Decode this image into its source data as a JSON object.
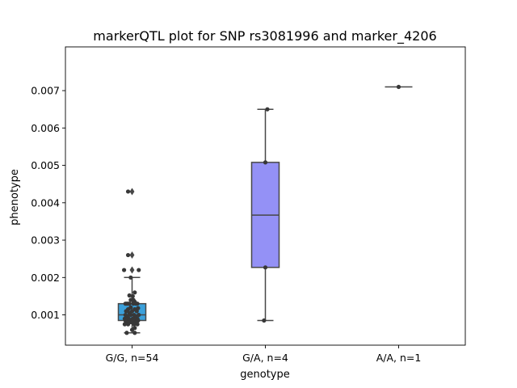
{
  "chart_data": {
    "type": "box",
    "title": "markerQTL plot for SNP rs3081996 and marker_4206",
    "xlabel": "genotype",
    "ylabel": "phenotype",
    "ylim": [
      0.00019,
      0.00817
    ],
    "yticks": [
      0.001,
      0.002,
      0.003,
      0.004,
      0.005,
      0.006,
      0.007
    ],
    "ytick_labels": [
      "0.001",
      "0.002",
      "0.003",
      "0.004",
      "0.005",
      "0.006",
      "0.007"
    ],
    "grid": false,
    "categories": [
      "G/G, n=54",
      "G/A, n=4",
      "A/A, n=1"
    ],
    "boxes": [
      {
        "category": "G/G, n=54",
        "color": "#3aa0db",
        "q1": 0.00085,
        "median": 0.001,
        "q3": 0.0013,
        "whisker_low": 0.00052,
        "whisker_high": 0.002,
        "outliers": [
          0.0022,
          0.0026,
          0.0043
        ]
      },
      {
        "category": "G/A, n=4",
        "color": "#9491f6",
        "q1": 0.00227,
        "median": 0.00367,
        "q3": 0.00508,
        "whisker_low": 0.00085,
        "whisker_high": 0.0065,
        "outliers": []
      },
      {
        "category": "A/A, n=1",
        "color": "#9491f6",
        "q1": 0.0071,
        "median": 0.0071,
        "q3": 0.0071,
        "whisker_low": 0.0071,
        "whisker_high": 0.0071,
        "outliers": []
      }
    ],
    "points": [
      {
        "category": 0,
        "jitter": -0.03,
        "y": 0.0043
      },
      {
        "category": 0,
        "jitter": -0.03,
        "y": 0.0026
      },
      {
        "category": 0,
        "jitter": -0.06,
        "y": 0.0022
      },
      {
        "category": 0,
        "jitter": 0.05,
        "y": 0.0022
      },
      {
        "category": 0,
        "jitter": -0.01,
        "y": 0.002
      },
      {
        "category": 0,
        "jitter": 0.02,
        "y": 0.0016
      },
      {
        "category": 0,
        "jitter": -0.02,
        "y": 0.00152
      },
      {
        "category": 0,
        "jitter": 0.005,
        "y": 0.0015
      },
      {
        "category": 0,
        "jitter": -0.01,
        "y": 0.0014
      },
      {
        "category": 0,
        "jitter": 0.01,
        "y": 0.0014
      },
      {
        "category": 0,
        "jitter": 0.02,
        "y": 0.00135
      },
      {
        "category": 0,
        "jitter": -0.05,
        "y": 0.0013
      },
      {
        "category": 0,
        "jitter": -0.04,
        "y": 0.0013
      },
      {
        "category": 0,
        "jitter": -0.03,
        "y": 0.0013
      },
      {
        "category": 0,
        "jitter": -0.02,
        "y": 0.0013
      },
      {
        "category": 0,
        "jitter": 0.01,
        "y": 0.0013
      },
      {
        "category": 0,
        "jitter": 0.03,
        "y": 0.0013
      },
      {
        "category": 0,
        "jitter": 0.04,
        "y": 0.0013
      },
      {
        "category": 0,
        "jitter": -0.01,
        "y": 0.0012
      },
      {
        "category": 0,
        "jitter": -0.03,
        "y": 0.00115
      },
      {
        "category": 0,
        "jitter": 0.02,
        "y": 0.00115
      },
      {
        "category": 0,
        "jitter": 0.045,
        "y": 0.00118
      },
      {
        "category": 0,
        "jitter": -0.045,
        "y": 0.0011
      },
      {
        "category": 0,
        "jitter": 0.0,
        "y": 0.0011
      },
      {
        "category": 0,
        "jitter": 0.035,
        "y": 0.0011
      },
      {
        "category": 0,
        "jitter": -0.02,
        "y": 0.00105
      },
      {
        "category": 0,
        "jitter": -0.05,
        "y": 0.001
      },
      {
        "category": 0,
        "jitter": -0.01,
        "y": 0.001
      },
      {
        "category": 0,
        "jitter": 0.015,
        "y": 0.001
      },
      {
        "category": 0,
        "jitter": 0.05,
        "y": 0.001
      },
      {
        "category": 0,
        "jitter": -0.035,
        "y": 0.00095
      },
      {
        "category": 0,
        "jitter": 0.025,
        "y": 0.00095
      },
      {
        "category": 0,
        "jitter": -0.055,
        "y": 0.0009
      },
      {
        "category": 0,
        "jitter": -0.025,
        "y": 0.0009
      },
      {
        "category": 0,
        "jitter": 0.005,
        "y": 0.0009
      },
      {
        "category": 0,
        "jitter": 0.04,
        "y": 0.0009
      },
      {
        "category": 0,
        "jitter": -0.04,
        "y": 0.00088
      },
      {
        "category": 0,
        "jitter": 0.02,
        "y": 0.00088
      },
      {
        "category": 0,
        "jitter": -0.05,
        "y": 0.00085
      },
      {
        "category": 0,
        "jitter": -0.015,
        "y": 0.00085
      },
      {
        "category": 0,
        "jitter": 0.01,
        "y": 0.00085
      },
      {
        "category": 0,
        "jitter": 0.045,
        "y": 0.00085
      },
      {
        "category": 0,
        "jitter": -0.045,
        "y": 0.0008
      },
      {
        "category": 0,
        "jitter": -0.02,
        "y": 0.0008
      },
      {
        "category": 0,
        "jitter": 0.0,
        "y": 0.0008
      },
      {
        "category": 0,
        "jitter": 0.03,
        "y": 0.0008
      },
      {
        "category": 0,
        "jitter": -0.055,
        "y": 0.00075
      },
      {
        "category": 0,
        "jitter": -0.03,
        "y": 0.00075
      },
      {
        "category": 0,
        "jitter": 0.015,
        "y": 0.00075
      },
      {
        "category": 0,
        "jitter": 0.04,
        "y": 0.00075
      },
      {
        "category": 0,
        "jitter": 0.02,
        "y": 0.00065
      },
      {
        "category": 0,
        "jitter": 0.0,
        "y": 0.0006
      },
      {
        "category": 0,
        "jitter": -0.04,
        "y": 0.00052
      },
      {
        "category": 0,
        "jitter": 0.02,
        "y": 0.00052
      },
      {
        "category": 1,
        "jitter": 0.015,
        "y": 0.0065
      },
      {
        "category": 1,
        "jitter": 0.0,
        "y": 0.00508
      },
      {
        "category": 1,
        "jitter": 0.0,
        "y": 0.00227
      },
      {
        "category": 1,
        "jitter": -0.01,
        "y": 0.00085
      },
      {
        "category": 2,
        "jitter": 0.0,
        "y": 0.0071
      }
    ]
  }
}
